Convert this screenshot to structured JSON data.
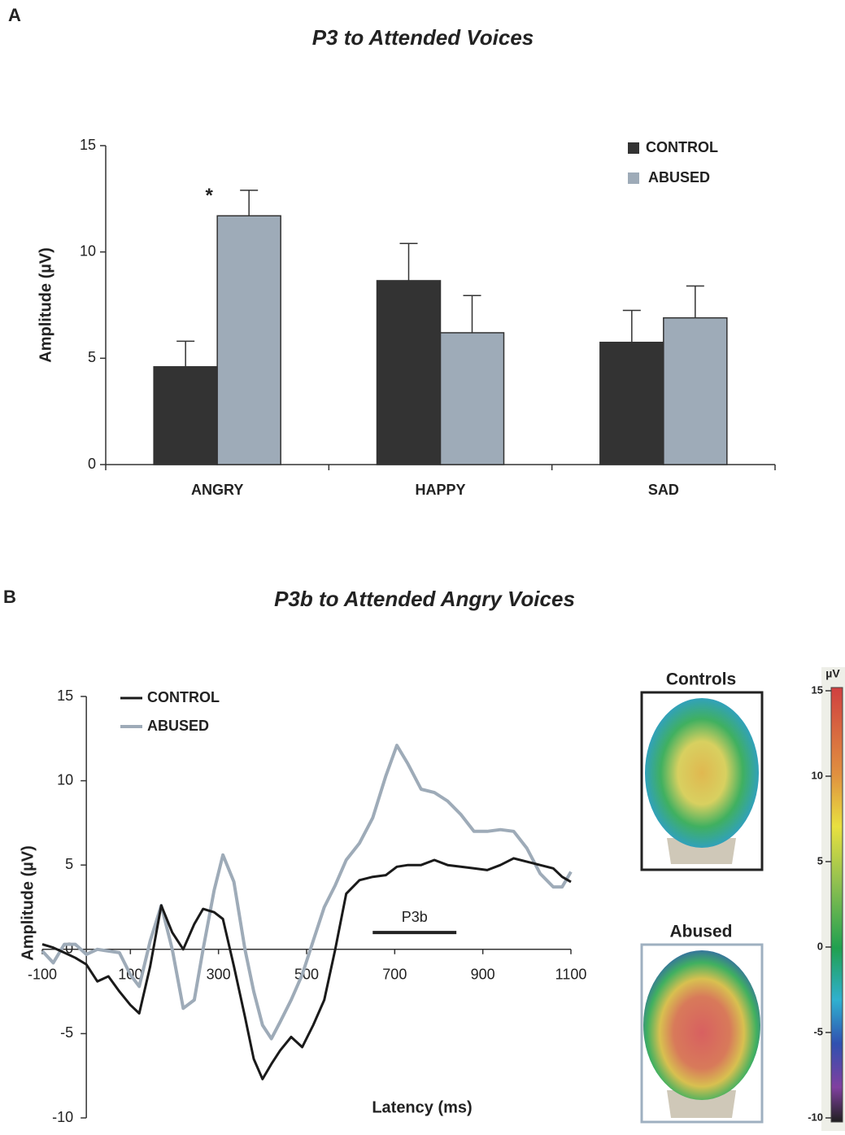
{
  "chart_data": [
    {
      "type": "bar",
      "panel": "A",
      "title": "P3 to Attended Voices",
      "y_label": "Amplitude (µV)",
      "categories": [
        "ANGRY",
        "HAPPY",
        "SAD"
      ],
      "series": [
        {
          "name": "CONTROL",
          "color": "#333333",
          "values": [
            4.6,
            8.65,
            5.75
          ],
          "errors": [
            1.2,
            1.75,
            1.5
          ]
        },
        {
          "name": "ABUSED",
          "color": "#9eabb8",
          "values": [
            11.7,
            6.2,
            6.9
          ],
          "errors": [
            1.2,
            1.75,
            1.5
          ]
        }
      ],
      "annotation": "*",
      "ylim": [
        0,
        15
      ],
      "yticks": [
        0,
        5,
        10,
        15
      ]
    },
    {
      "type": "line",
      "panel": "B",
      "title": "P3b to Attended Angry Voices",
      "x_label": "Latency (ms)",
      "y_label": "Amplitude (µV)",
      "x": [
        -100,
        -75,
        -50,
        -25,
        0,
        25,
        50,
        75,
        100,
        120,
        145,
        170,
        195,
        220,
        245,
        265,
        290,
        310,
        335,
        360,
        380,
        400,
        420,
        440,
        465,
        490,
        515,
        540,
        565,
        590,
        620,
        650,
        680,
        705,
        730,
        760,
        790,
        820,
        850,
        880,
        910,
        940,
        970,
        1000,
        1030,
        1060,
        1080,
        1100
      ],
      "series": [
        {
          "name": "CONTROL",
          "color": "#1a1a1a",
          "values": [
            0.3,
            0.1,
            -0.2,
            -0.5,
            -0.9,
            -1.9,
            -1.6,
            -2.5,
            -3.3,
            -3.8,
            -1.0,
            2.6,
            1.0,
            0.0,
            1.5,
            2.4,
            2.2,
            1.8,
            -1.0,
            -4.0,
            -6.5,
            -7.7,
            -6.8,
            -6.0,
            -5.2,
            -5.8,
            -4.5,
            -3.0,
            0.0,
            3.3,
            4.1,
            4.3,
            4.4,
            4.9,
            5.0,
            5.0,
            5.3,
            5.0,
            4.9,
            4.8,
            4.7,
            5.0,
            5.4,
            5.2,
            5.0,
            4.8,
            4.3,
            4.0
          ]
        },
        {
          "name": "ABUSED",
          "color": "#9eabb8",
          "values": [
            -0.1,
            -0.8,
            0.3,
            0.3,
            -0.3,
            0.0,
            -0.1,
            -0.2,
            -1.5,
            -2.2,
            0.5,
            2.6,
            0.0,
            -3.5,
            -3.0,
            0.0,
            3.5,
            5.6,
            4.0,
            0.0,
            -2.5,
            -4.5,
            -5.3,
            -4.3,
            -3.0,
            -1.5,
            0.5,
            2.5,
            3.8,
            5.3,
            6.3,
            7.8,
            10.3,
            12.1,
            11.0,
            9.5,
            9.3,
            8.8,
            8.0,
            7.0,
            7.0,
            7.1,
            7.0,
            6.0,
            4.5,
            3.7,
            3.7,
            4.6
          ]
        }
      ],
      "annotation": {
        "text": "P3b",
        "x": [
          650,
          840
        ],
        "y": 1.0
      },
      "xlim": [
        -100,
        1100
      ],
      "xticks": [
        -100,
        100,
        300,
        500,
        700,
        900,
        1100
      ],
      "ylim": [
        -10,
        15
      ],
      "yticks": [
        -10,
        -5,
        0,
        5,
        10,
        15
      ],
      "maps": [
        "Controls",
        "Abused"
      ],
      "colorbar": {
        "title": "µV",
        "lim": [
          -10,
          15
        ],
        "ticks": [
          15,
          10,
          5,
          0,
          -5,
          -10
        ]
      }
    }
  ]
}
